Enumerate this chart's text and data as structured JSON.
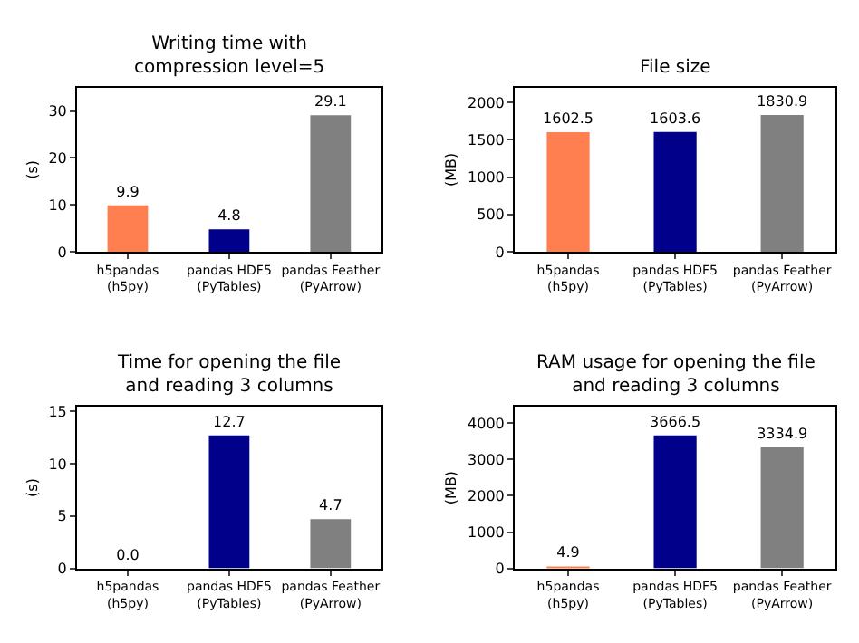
{
  "chart_data": [
    {
      "type": "bar",
      "title": "Writing time with\ncompression level=5",
      "ylabel": "(s)",
      "categories": [
        "h5pandas\n(h5py)",
        "pandas HDF5\n(PyTables)",
        "pandas Feather\n(PyArrow)"
      ],
      "values": [
        9.9,
        4.8,
        29.1
      ],
      "value_labels": [
        "9.9",
        "4.8",
        "29.1"
      ],
      "colors": [
        "#ff7f50",
        "#00008b",
        "#808080"
      ],
      "ylim": [
        0,
        35
      ],
      "yticks": [
        0,
        10,
        20,
        30
      ]
    },
    {
      "type": "bar",
      "title": "File size",
      "ylabel": "(MB)",
      "categories": [
        "h5pandas\n(h5py)",
        "pandas HDF5\n(PyTables)",
        "pandas Feather\n(PyArrow)"
      ],
      "values": [
        1602.5,
        1603.6,
        1830.9
      ],
      "value_labels": [
        "1602.5",
        "1603.6",
        "1830.9"
      ],
      "colors": [
        "#ff7f50",
        "#00008b",
        "#808080"
      ],
      "ylim": [
        0,
        2200
      ],
      "yticks": [
        0,
        500,
        1000,
        1500,
        2000
      ]
    },
    {
      "type": "bar",
      "title": "Time for opening the file\nand reading 3 columns",
      "ylabel": "(s)",
      "categories": [
        "h5pandas\n(h5py)",
        "pandas HDF5\n(PyTables)",
        "pandas Feather\n(PyArrow)"
      ],
      "values": [
        0,
        12.7,
        4.7
      ],
      "value_labels": [
        "0.0",
        "12.7",
        "4.7"
      ],
      "colors": [
        "#ff7f50",
        "#00008b",
        "#808080"
      ],
      "ylim": [
        0,
        15.4
      ],
      "yticks": [
        0,
        5,
        10,
        15
      ]
    },
    {
      "type": "bar",
      "title": "RAM usage for opening the file\nand reading 3 columns",
      "ylabel": "(MB)",
      "categories": [
        "h5pandas\n(h5py)",
        "pandas HDF5\n(PyTables)",
        "pandas Feather\n(PyArrow)"
      ],
      "values": [
        4.9,
        3666.5,
        3334.9
      ],
      "value_labels": [
        "4.9",
        "3666.5",
        "3334.9"
      ],
      "colors": [
        "#ff7f50",
        "#00008b",
        "#808080"
      ],
      "ylim": [
        0,
        4450
      ],
      "yticks": [
        0,
        1000,
        2000,
        3000,
        4000
      ]
    }
  ]
}
